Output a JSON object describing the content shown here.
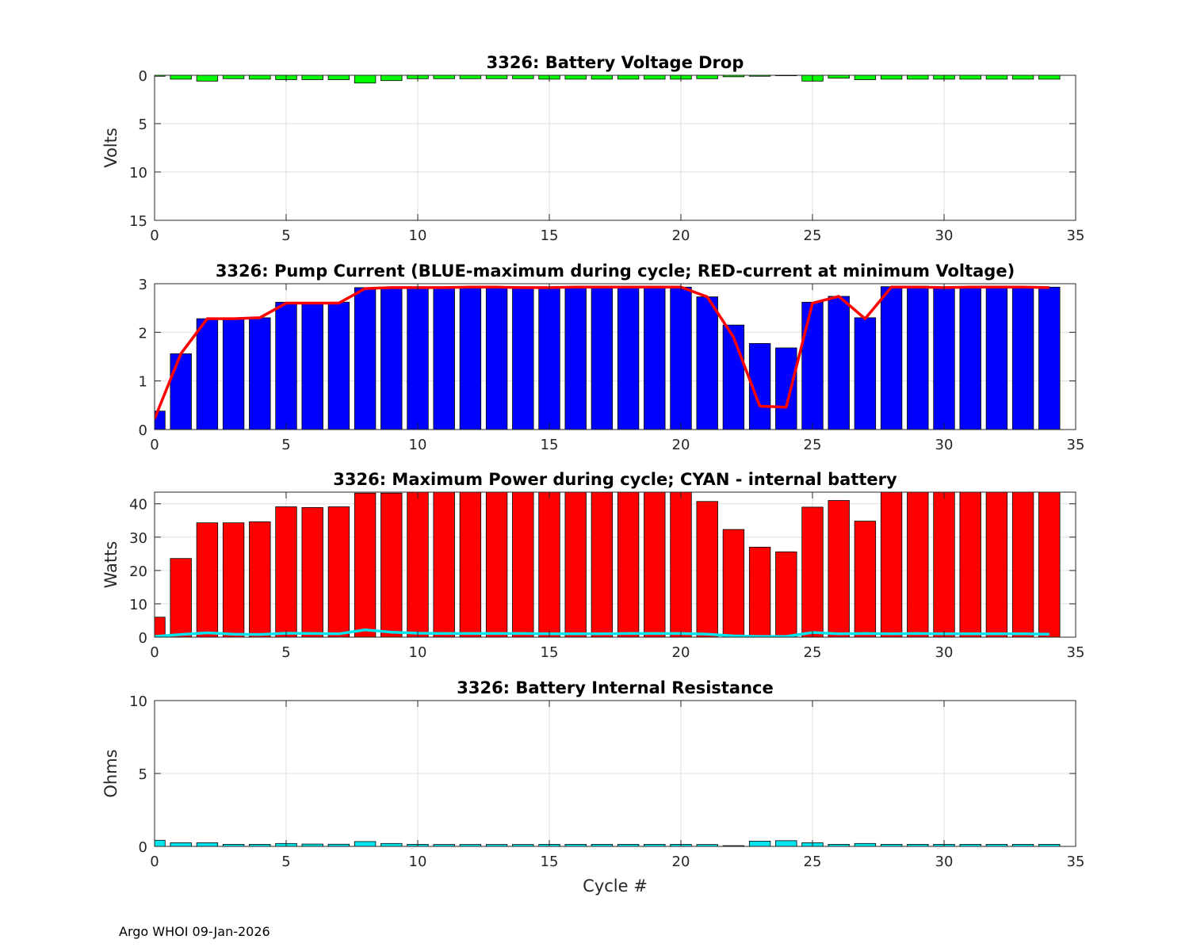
{
  "footer": "Argo WHOI 09-Jan-2026",
  "chart_data": [
    {
      "id": "voltage",
      "type": "bar",
      "title": "3326: Battery Voltage Drop",
      "xlabel": "",
      "ylabel": "Volts",
      "xlim": [
        0,
        35
      ],
      "ylim": [
        0,
        15
      ],
      "y_reversed": true,
      "xticks": [
        0,
        5,
        10,
        15,
        20,
        25,
        30,
        35
      ],
      "yticks": [
        0,
        5,
        10,
        15
      ],
      "grid": true,
      "bar_color": "#00ff00",
      "x": [
        0,
        1,
        2,
        3,
        4,
        5,
        6,
        7,
        8,
        9,
        10,
        11,
        12,
        13,
        14,
        15,
        16,
        17,
        18,
        19,
        20,
        21,
        22,
        23,
        24,
        25,
        26,
        27,
        28,
        29,
        30,
        31,
        32,
        33,
        34
      ],
      "values": [
        0.1,
        0.4,
        0.6,
        0.35,
        0.4,
        0.45,
        0.45,
        0.45,
        0.8,
        0.55,
        0.35,
        0.35,
        0.35,
        0.35,
        0.35,
        0.4,
        0.4,
        0.4,
        0.4,
        0.4,
        0.4,
        0.35,
        0.15,
        0.1,
        0.05,
        0.6,
        0.3,
        0.45,
        0.4,
        0.4,
        0.4,
        0.4,
        0.4,
        0.4,
        0.4
      ]
    },
    {
      "id": "current",
      "type": "bar",
      "title": "3326: Pump Current (BLUE-maximum during cycle; RED-current at minimum Voltage)",
      "xlabel": "",
      "ylabel": "",
      "xlim": [
        0,
        35
      ],
      "ylim": [
        0,
        3
      ],
      "xticks": [
        0,
        5,
        10,
        15,
        20,
        25,
        30,
        35
      ],
      "yticks": [
        0,
        1,
        2,
        3
      ],
      "grid": true,
      "bar_color": "#0000ff",
      "line_color": "#ff0000",
      "x": [
        0,
        1,
        2,
        3,
        4,
        5,
        6,
        7,
        8,
        9,
        10,
        11,
        12,
        13,
        14,
        15,
        16,
        17,
        18,
        19,
        20,
        21,
        22,
        23,
        24,
        25,
        26,
        27,
        28,
        29,
        30,
        31,
        32,
        33,
        34
      ],
      "series": [
        {
          "name": "maximum during cycle",
          "kind": "bar",
          "values": [
            0.38,
            1.56,
            2.28,
            2.3,
            2.3,
            2.62,
            2.61,
            2.62,
            2.92,
            2.92,
            2.93,
            2.93,
            2.94,
            2.94,
            2.93,
            2.93,
            2.93,
            2.94,
            2.94,
            2.94,
            2.93,
            2.73,
            2.15,
            1.77,
            1.68,
            2.62,
            2.74,
            2.3,
            2.94,
            2.95,
            2.93,
            2.94,
            2.94,
            2.94,
            2.93
          ]
        },
        {
          "name": "current at minimum Voltage",
          "kind": "line",
          "values": [
            0.22,
            1.56,
            2.28,
            2.28,
            2.3,
            2.6,
            2.6,
            2.6,
            2.9,
            2.92,
            2.92,
            2.92,
            2.93,
            2.93,
            2.92,
            2.92,
            2.93,
            2.93,
            2.93,
            2.93,
            2.93,
            2.73,
            1.9,
            0.48,
            0.46,
            2.6,
            2.74,
            2.28,
            2.93,
            2.93,
            2.92,
            2.93,
            2.93,
            2.93,
            2.92
          ]
        }
      ]
    },
    {
      "id": "power",
      "type": "bar",
      "title": "3326: Maximum Power during cycle; CYAN - internal battery",
      "xlabel": "",
      "ylabel": "Watts",
      "xlim": [
        0,
        35
      ],
      "ylim": [
        0,
        43.5
      ],
      "xticks": [
        0,
        5,
        10,
        15,
        20,
        25,
        30,
        35
      ],
      "yticks": [
        0,
        10,
        20,
        30,
        40
      ],
      "grid": true,
      "bar_color": "#ff0000",
      "line_color": "#00e5ee",
      "x": [
        0,
        1,
        2,
        3,
        4,
        5,
        6,
        7,
        8,
        9,
        10,
        11,
        12,
        13,
        14,
        15,
        16,
        17,
        18,
        19,
        20,
        21,
        22,
        23,
        24,
        25,
        26,
        27,
        28,
        29,
        30,
        31,
        32,
        33,
        34
      ],
      "series": [
        {
          "name": "Maximum Power",
          "kind": "bar",
          "values": [
            6,
            23.6,
            34.3,
            34.3,
            34.6,
            39.1,
            38.9,
            39.1,
            43.2,
            43.2,
            43.5,
            43.5,
            43.5,
            43.5,
            43.5,
            43.5,
            43.5,
            43.5,
            43.5,
            43.5,
            43.5,
            40.7,
            32.3,
            27,
            25.6,
            39,
            41,
            34.8,
            43.5,
            43.5,
            43.5,
            43.5,
            43.5,
            43.5,
            43.5
          ]
        },
        {
          "name": "internal battery",
          "kind": "line",
          "values": [
            0.2,
            0.8,
            1.3,
            0.9,
            0.8,
            1.2,
            1.1,
            1.0,
            2.2,
            1.5,
            1.2,
            1.1,
            1.1,
            1.1,
            1.1,
            1.0,
            1.0,
            1.0,
            1.1,
            1.1,
            1.1,
            0.9,
            0.4,
            0.2,
            0.2,
            1.4,
            1.0,
            1.1,
            1.0,
            1.1,
            1.0,
            1.0,
            1.0,
            1.0,
            0.9
          ]
        }
      ]
    },
    {
      "id": "resistance",
      "type": "bar",
      "title": "3326: Battery Internal Resistance",
      "xlabel": "Cycle #",
      "ylabel": "Ohms",
      "xlim": [
        0,
        35
      ],
      "ylim": [
        0,
        10
      ],
      "xticks": [
        0,
        5,
        10,
        15,
        20,
        25,
        30,
        35
      ],
      "yticks": [
        0,
        5,
        10
      ],
      "grid": true,
      "bar_color": "#00e5ee",
      "x": [
        0,
        1,
        2,
        3,
        4,
        5,
        6,
        7,
        8,
        9,
        10,
        11,
        12,
        13,
        14,
        15,
        16,
        17,
        18,
        19,
        20,
        21,
        22,
        23,
        24,
        25,
        26,
        27,
        28,
        29,
        30,
        31,
        32,
        33,
        34
      ],
      "values": [
        0.42,
        0.25,
        0.25,
        0.14,
        0.14,
        0.2,
        0.16,
        0.15,
        0.33,
        0.2,
        0.14,
        0.13,
        0.13,
        0.13,
        0.13,
        0.14,
        0.14,
        0.14,
        0.14,
        0.14,
        0.14,
        0.13,
        0.05,
        0.36,
        0.39,
        0.25,
        0.14,
        0.2,
        0.14,
        0.14,
        0.14,
        0.14,
        0.14,
        0.14,
        0.14
      ]
    }
  ]
}
